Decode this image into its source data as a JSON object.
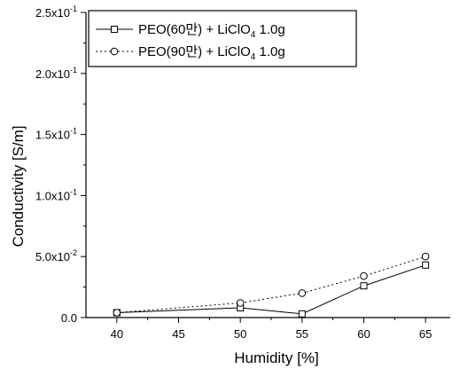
{
  "chart_data": {
    "type": "line",
    "xlabel": "Humidity [%]",
    "ylabel": "Conductivity [S/m]",
    "xlim": [
      37.5,
      67
    ],
    "ylim": [
      0,
      0.25
    ],
    "x_ticks": [
      40,
      45,
      50,
      55,
      60,
      65
    ],
    "x_tick_labels": [
      "40",
      "45",
      "50",
      "55",
      "60",
      "65"
    ],
    "y_ticks": [
      {
        "value": 0.0,
        "base": "0.0",
        "exp": ""
      },
      {
        "value": 0.05,
        "base": "5.0x10",
        "exp": "-2"
      },
      {
        "value": 0.1,
        "base": "1.0x10",
        "exp": "-1"
      },
      {
        "value": 0.15,
        "base": "1.5x10",
        "exp": "-1"
      },
      {
        "value": 0.2,
        "base": "2.0x10",
        "exp": "-1"
      },
      {
        "value": 0.25,
        "base": "2.5x10",
        "exp": "-1"
      }
    ],
    "legend_position": "top-right",
    "series": [
      {
        "name_main": "PEO(60만) + LiClO",
        "name_sub": "4",
        "name_tail": " 1.0g",
        "marker": "square",
        "line_style": "solid",
        "x": [
          40,
          50,
          55,
          60,
          65
        ],
        "y": [
          0.004,
          0.008,
          0.003,
          0.026,
          0.043
        ]
      },
      {
        "name_main": "PEO(90만) + LiClO",
        "name_sub": "4",
        "name_tail": " 1.0g",
        "marker": "circle",
        "line_style": "dotted",
        "x": [
          40,
          50,
          55,
          60,
          65
        ],
        "y": [
          0.004,
          0.012,
          0.02,
          0.034,
          0.05
        ]
      }
    ]
  }
}
